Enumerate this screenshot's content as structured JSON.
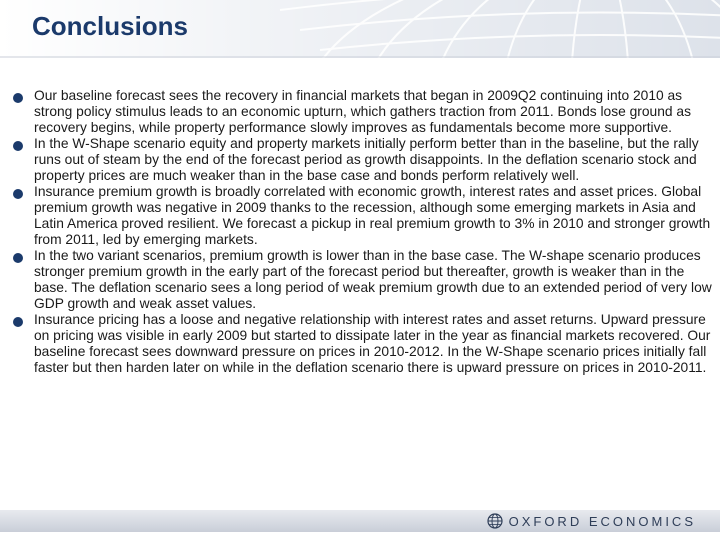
{
  "slide": {
    "title": "Conclusions",
    "bullets": [
      {
        "text": "Our baseline forecast sees the recovery in financial markets that began in 2009Q2 continuing into 2010 as strong policy stimulus leads to an economic upturn, which gathers traction from 2011. Bonds lose ground as recovery begins, while property performance slowly improves as fundamentals become more supportive."
      },
      {
        "text": "In the W-Shape scenario equity and property markets initially perform better than in the baseline, but the rally runs out of steam by the end of the forecast period as growth disappoints. In the deflation scenario stock and property prices are much weaker than in the base case and bonds perform relatively well."
      },
      {
        "text": "Insurance premium growth is broadly correlated with economic growth, interest rates and asset prices. Global premium growth was negative in 2009 thanks to the recession, although some emerging markets in Asia and Latin America proved resilient. We forecast a pickup in real premium growth to 3% in  2010 and stronger growth from 2011, led by emerging markets."
      },
      {
        "text": "In the two variant scenarios, premium growth is lower than in the base case. The W-shape scenario produces stronger premium growth in the early part of the forecast period but thereafter, growth is weaker than in the base. The deflation scenario sees a long period of weak premium growth due to an extended period of very low GDP growth and weak asset values."
      },
      {
        "text": "Insurance pricing has a loose and negative relationship with interest rates and asset returns. Upward pressure on pricing was visible in early 2009 but started to dissipate later in the year as financial markets recovered. Our baseline forecast sees downward pressure on prices in 2010-2012. In the W-Shape scenario prices initially fall faster but then harden later on while in the deflation scenario there is upward pressure on prices in 2010-2011."
      }
    ]
  },
  "footer": {
    "logo_text": "OXFORD ECONOMICS"
  },
  "colors": {
    "title": "#1b3a6b",
    "bullet": "#1b3a6b",
    "body_text": "#1a1a1a",
    "footer_bar": "#c9ced8"
  },
  "icons": {
    "header_decoration": "globe-grid-icon",
    "logo": "oxford-economics-logo-icon"
  }
}
